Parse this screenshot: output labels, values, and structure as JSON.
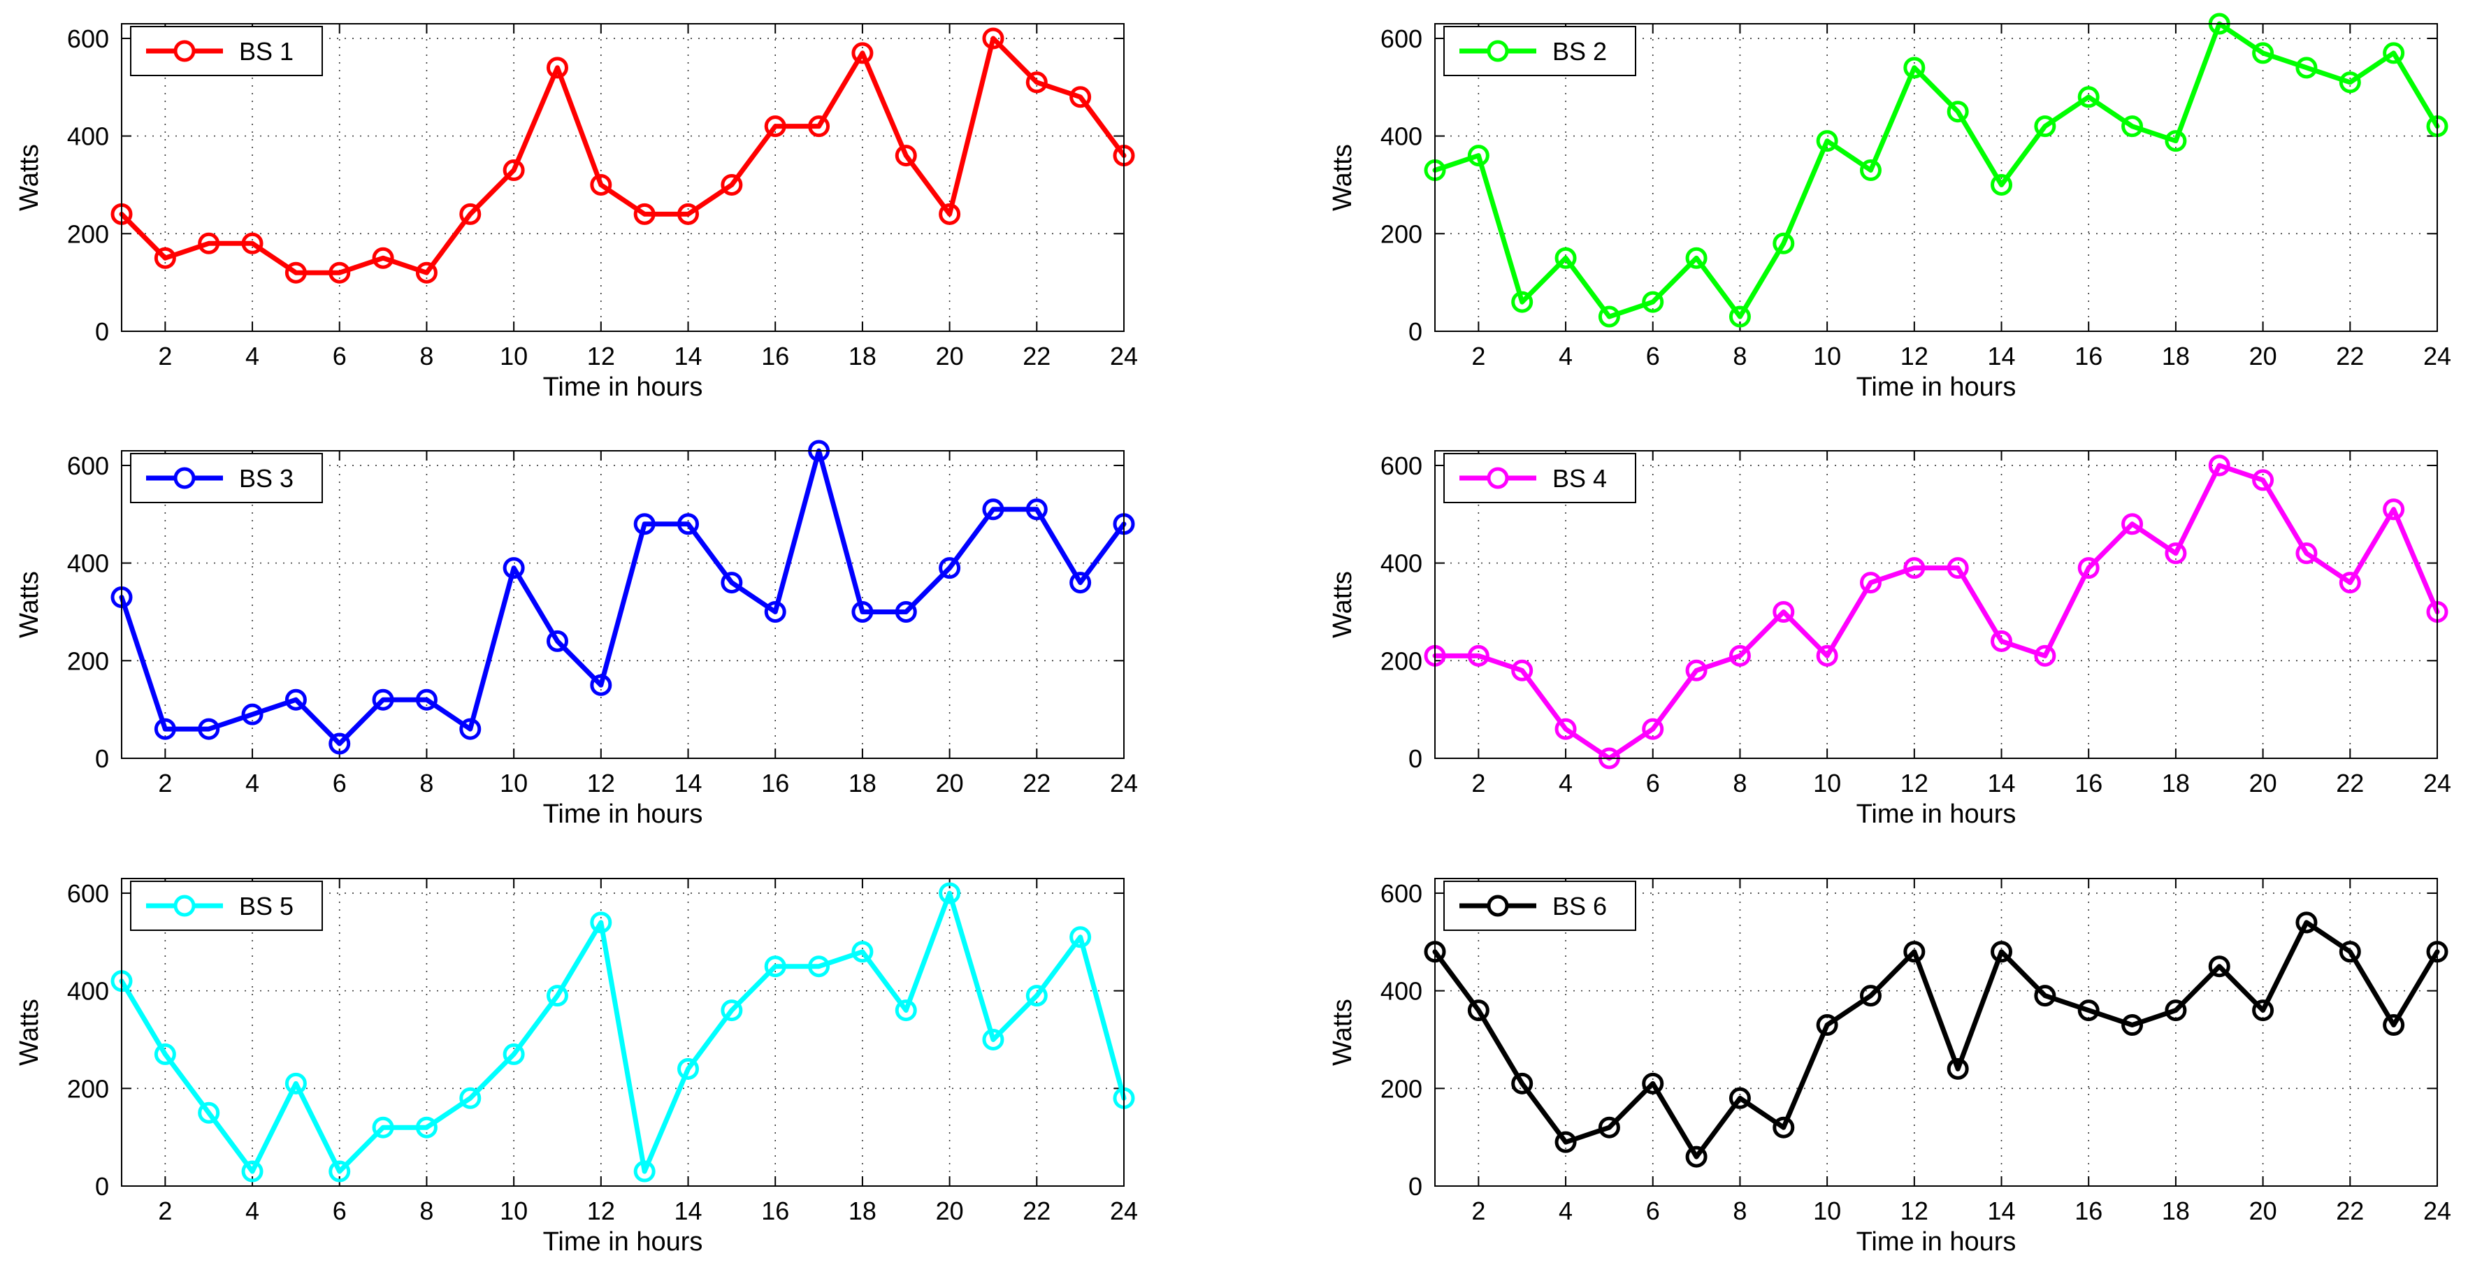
{
  "chart_data": [
    {
      "type": "line",
      "x": [
        1,
        2,
        3,
        4,
        5,
        6,
        7,
        8,
        9,
        10,
        11,
        12,
        13,
        14,
        15,
        16,
        17,
        18,
        19,
        20,
        21,
        22,
        23,
        24
      ],
      "series": [
        {
          "name": "BS 1",
          "color": "#ff0000",
          "values": [
            240,
            150,
            180,
            180,
            120,
            120,
            150,
            120,
            240,
            330,
            540,
            300,
            240,
            240,
            300,
            420,
            420,
            570,
            360,
            240,
            600,
            510,
            480,
            360
          ]
        }
      ],
      "xlabel": "Time in hours",
      "ylabel": "Watts",
      "xticks": [
        2,
        4,
        6,
        8,
        10,
        12,
        14,
        16,
        18,
        20,
        22,
        24
      ],
      "yticks": [
        0,
        200,
        400,
        600
      ],
      "xlim": [
        1,
        24
      ],
      "ylim": [
        0,
        630
      ],
      "grid": true,
      "legend": "top-left"
    },
    {
      "type": "line",
      "x": [
        1,
        2,
        3,
        4,
        5,
        6,
        7,
        8,
        9,
        10,
        11,
        12,
        13,
        14,
        15,
        16,
        17,
        18,
        19,
        20,
        21,
        22,
        23,
        24
      ],
      "series": [
        {
          "name": "BS 2",
          "color": "#00ff00",
          "values": [
            330,
            360,
            60,
            150,
            30,
            60,
            150,
            30,
            180,
            390,
            330,
            540,
            450,
            300,
            420,
            480,
            420,
            390,
            630,
            570,
            540,
            510,
            570,
            420
          ]
        }
      ],
      "xlabel": "Time in hours",
      "ylabel": "Watts",
      "xticks": [
        2,
        4,
        6,
        8,
        10,
        12,
        14,
        16,
        18,
        20,
        22,
        24
      ],
      "yticks": [
        0,
        200,
        400,
        600
      ],
      "xlim": [
        1,
        24
      ],
      "ylim": [
        0,
        630
      ],
      "grid": true,
      "legend": "top-left"
    },
    {
      "type": "line",
      "x": [
        1,
        2,
        3,
        4,
        5,
        6,
        7,
        8,
        9,
        10,
        11,
        12,
        13,
        14,
        15,
        16,
        17,
        18,
        19,
        20,
        21,
        22,
        23,
        24
      ],
      "series": [
        {
          "name": "BS 3",
          "color": "#0000ff",
          "values": [
            330,
            60,
            60,
            90,
            120,
            30,
            120,
            120,
            60,
            390,
            240,
            150,
            480,
            480,
            360,
            300,
            630,
            300,
            300,
            390,
            510,
            510,
            360,
            480
          ]
        }
      ],
      "xlabel": "Time in hours",
      "ylabel": "Watts",
      "xticks": [
        2,
        4,
        6,
        8,
        10,
        12,
        14,
        16,
        18,
        20,
        22,
        24
      ],
      "yticks": [
        0,
        200,
        400,
        600
      ],
      "xlim": [
        1,
        24
      ],
      "ylim": [
        0,
        630
      ],
      "grid": true,
      "legend": "top-left"
    },
    {
      "type": "line",
      "x": [
        1,
        2,
        3,
        4,
        5,
        6,
        7,
        8,
        9,
        10,
        11,
        12,
        13,
        14,
        15,
        16,
        17,
        18,
        19,
        20,
        21,
        22,
        23,
        24
      ],
      "series": [
        {
          "name": "BS 4",
          "color": "#ff00ff",
          "values": [
            210,
            210,
            180,
            60,
            0,
            60,
            180,
            210,
            300,
            210,
            360,
            390,
            390,
            240,
            210,
            390,
            480,
            420,
            600,
            570,
            420,
            360,
            510,
            300
          ]
        }
      ],
      "xlabel": "Time in hours",
      "ylabel": "Watts",
      "xticks": [
        2,
        4,
        6,
        8,
        10,
        12,
        14,
        16,
        18,
        20,
        22,
        24
      ],
      "yticks": [
        0,
        200,
        400,
        600
      ],
      "xlim": [
        1,
        24
      ],
      "ylim": [
        0,
        630
      ],
      "grid": true,
      "legend": "top-left"
    },
    {
      "type": "line",
      "x": [
        1,
        2,
        3,
        4,
        5,
        6,
        7,
        8,
        9,
        10,
        11,
        12,
        13,
        14,
        15,
        16,
        17,
        18,
        19,
        20,
        21,
        22,
        23,
        24
      ],
      "series": [
        {
          "name": "BS 5",
          "color": "#00ffff",
          "values": [
            420,
            270,
            150,
            30,
            210,
            30,
            120,
            120,
            180,
            270,
            390,
            540,
            30,
            240,
            360,
            450,
            450,
            480,
            360,
            600,
            300,
            390,
            510,
            180
          ]
        }
      ],
      "xlabel": "Time in hours",
      "ylabel": "Watts",
      "xticks": [
        2,
        4,
        6,
        8,
        10,
        12,
        14,
        16,
        18,
        20,
        22,
        24
      ],
      "yticks": [
        0,
        200,
        400,
        600
      ],
      "xlim": [
        1,
        24
      ],
      "ylim": [
        0,
        630
      ],
      "grid": true,
      "legend": "top-left"
    },
    {
      "type": "line",
      "x": [
        1,
        2,
        3,
        4,
        5,
        6,
        7,
        8,
        9,
        10,
        11,
        12,
        13,
        14,
        15,
        16,
        17,
        18,
        19,
        20,
        21,
        22,
        23,
        24
      ],
      "series": [
        {
          "name": "BS 6",
          "color": "#000000",
          "values": [
            480,
            360,
            210,
            90,
            120,
            210,
            60,
            180,
            120,
            330,
            390,
            480,
            240,
            480,
            390,
            360,
            330,
            360,
            450,
            360,
            540,
            480,
            330,
            480
          ]
        }
      ],
      "xlabel": "Time in hours",
      "ylabel": "Watts",
      "xticks": [
        2,
        4,
        6,
        8,
        10,
        12,
        14,
        16,
        18,
        20,
        22,
        24
      ],
      "yticks": [
        0,
        200,
        400,
        600
      ],
      "xlim": [
        1,
        24
      ],
      "ylim": [
        0,
        630
      ],
      "grid": true,
      "legend": "top-left"
    }
  ]
}
